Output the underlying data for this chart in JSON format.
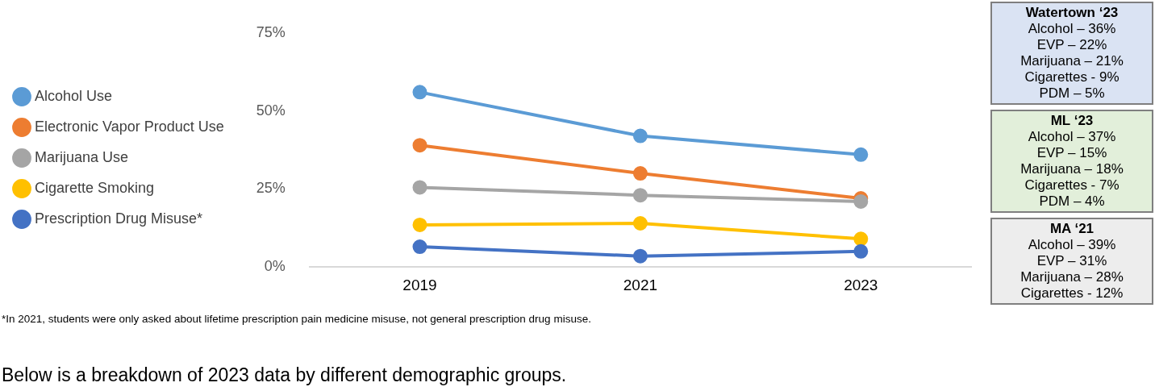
{
  "chart_data": {
    "type": "line",
    "categories": [
      "2019",
      "2021",
      "2023"
    ],
    "series": [
      {
        "name": "Alcohol Use",
        "color": "#5b9bd5",
        "values": [
          56,
          42,
          36
        ]
      },
      {
        "name": "Electronic Vapor Product Use",
        "color": "#ed7d31",
        "values": [
          39,
          30,
          22
        ]
      },
      {
        "name": "Marijuana Use",
        "color": "#a5a5a5",
        "values": [
          25.5,
          23,
          21
        ]
      },
      {
        "name": "Cigarette Smoking",
        "color": "#ffc000",
        "values": [
          13.5,
          14,
          9
        ]
      },
      {
        "name": "Prescription Drug Misuse*",
        "color": "#4472c4",
        "values": [
          6.5,
          3.5,
          5
        ]
      }
    ],
    "ylim": [
      0,
      75
    ],
    "yticks": [
      {
        "value": 0,
        "label": "0%"
      },
      {
        "value": 25,
        "label": "25%"
      },
      {
        "value": 50,
        "label": "50%"
      },
      {
        "value": 75,
        "label": "75%"
      }
    ],
    "grid": false,
    "legend": "left",
    "marker": "circle",
    "line_style": "solid",
    "annotations": [
      "*In 2021, students were only asked about lifetime prescription pain medicine misuse, not general prescription drug misuse.",
      "Below is a breakdown of 2023 data by different demographic groups.",
      "Watertown ‘23\nAlcohol – 36%\nEVP – 22%\nMarijuana – 21%\nCigarettes - 9%\nPDM – 5%",
      "ML ‘23\nAlcohol – 37%\nEVP – 15%\nMarijuana – 18%\nCigarettes - 7%\nPDM – 4%",
      "MA ‘21\nAlcohol – 39%\nEVP – 31%\nMarijuana – 28%\nCigarettes - 12%"
    ]
  }
}
